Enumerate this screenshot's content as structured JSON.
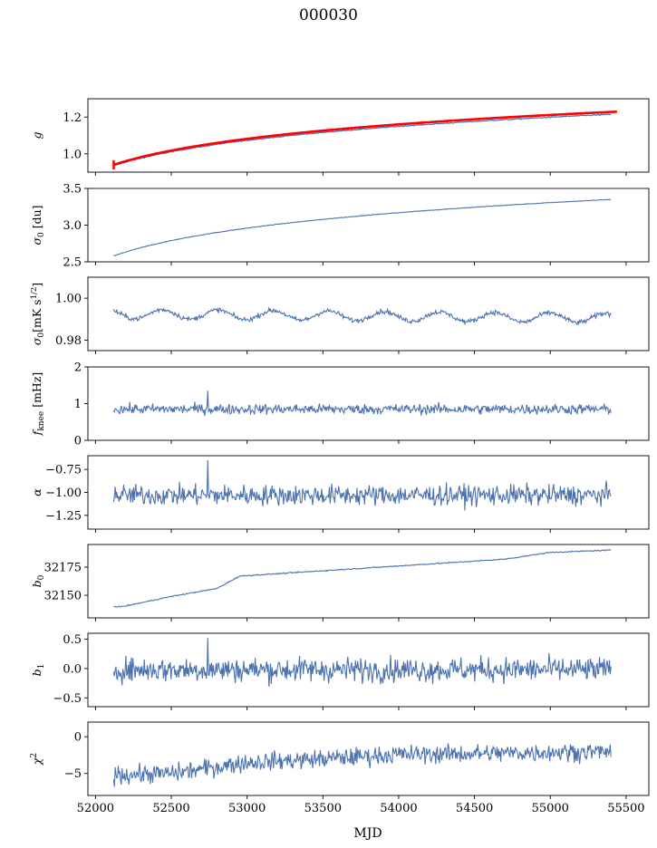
{
  "figure": {
    "title": "000030",
    "xlabel": "MJD"
  },
  "chart_data": {
    "type": "line",
    "title": "000030",
    "xlabel": "MJD",
    "xlim": [
      51950,
      55650
    ],
    "xticks": [
      52000,
      52500,
      53000,
      53500,
      54000,
      54500,
      55000,
      55500
    ],
    "x_range_data": [
      52120,
      55400
    ],
    "panels": [
      {
        "key": "g",
        "ylabel": "g",
        "ylim": [
          0.9,
          1.3
        ],
        "yticks": [
          1.0,
          1.2
        ],
        "color": "#4c72b0",
        "profile": "log",
        "start": 0.935,
        "end": 1.215,
        "noise": 0.002,
        "series": [
          {
            "name": "",
            "color": "#4c72b0",
            "x": [
              52120,
              52500,
              53000,
              53500,
              54000,
              54500,
              55000,
              55400
            ],
            "y": [
              0.935,
              1.01,
              1.07,
              1.12,
              1.15,
              1.18,
              1.2,
              1.215
            ]
          },
          {
            "name": "",
            "color": "#ff0000",
            "x": [
              52120,
              52500,
              53000,
              53500,
              54000,
              54500,
              55000,
              55450
            ],
            "y": [
              0.94,
              1.02,
              1.085,
              1.125,
              1.16,
              1.185,
              1.21,
              1.23
            ]
          }
        ]
      },
      {
        "key": "sigma0",
        "ylabel": "σ0 [du]",
        "ylim": [
          2.5,
          3.5
        ],
        "yticks": [
          2.5,
          3.0,
          3.5
        ],
        "color": "#4c72b0",
        "profile": "log",
        "start": 2.58,
        "end": 3.35,
        "noise": 0.003
      },
      {
        "key": "sigma0_mk",
        "ylabel": "σ0[mK s1/2]",
        "ylim": [
          0.975,
          1.01
        ],
        "yticks": [
          0.98,
          1.0
        ],
        "color": "#4c72b0",
        "profile": "wave",
        "center": 0.9925,
        "amp": 0.0025,
        "trend": -0.002,
        "noise": 0.0008
      },
      {
        "key": "fknee",
        "ylabel": "fknee [mHz]",
        "ylim": [
          0,
          2
        ],
        "yticks": [
          0,
          1,
          2
        ],
        "color": "#4c72b0",
        "profile": "noise",
        "center": 0.85,
        "noise": 0.1,
        "spike_max": 1.35
      },
      {
        "key": "alpha",
        "ylabel": "α",
        "ylim": [
          -1.4,
          -0.6
        ],
        "yticks": [
          -0.75,
          -1.0,
          -1.25
        ],
        "color": "#4c72b0",
        "profile": "noise",
        "center": -1.03,
        "noise": 0.08,
        "spike_max": -0.65
      },
      {
        "key": "b0",
        "ylabel": "b0",
        "ylim": [
          32130,
          32195
        ],
        "yticks": [
          32150,
          32175
        ],
        "color": "#4c72b0",
        "profile": "segmented",
        "knots": [
          [
            52120,
            32140
          ],
          [
            52180,
            32140
          ],
          [
            52500,
            32149
          ],
          [
            52800,
            32156
          ],
          [
            52950,
            32167
          ],
          [
            53300,
            32170
          ],
          [
            54000,
            32176
          ],
          [
            54700,
            32182
          ],
          [
            55000,
            32188
          ],
          [
            55400,
            32190
          ]
        ],
        "noise": 0.35
      },
      {
        "key": "b1",
        "ylabel": "b1",
        "ylim": [
          -0.65,
          0.6
        ],
        "yticks": [
          0.5,
          0.0,
          -0.5
        ],
        "color": "#4c72b0",
        "profile": "noise",
        "center": -0.02,
        "noise": 0.15,
        "spike_max": 0.52
      },
      {
        "key": "chi2",
        "ylabel": "χ2",
        "ylim": [
          -8,
          2
        ],
        "yticks": [
          0,
          -5
        ],
        "color": "#4c72b0",
        "profile": "trendnoise",
        "knots": [
          [
            52120,
            -5.2
          ],
          [
            52500,
            -5.0
          ],
          [
            53000,
            -3.5
          ],
          [
            53500,
            -3.0
          ],
          [
            54000,
            -2.4
          ],
          [
            54500,
            -2.3
          ],
          [
            55000,
            -2.1
          ],
          [
            55400,
            -2.0
          ]
        ],
        "noise": 0.9
      }
    ]
  }
}
